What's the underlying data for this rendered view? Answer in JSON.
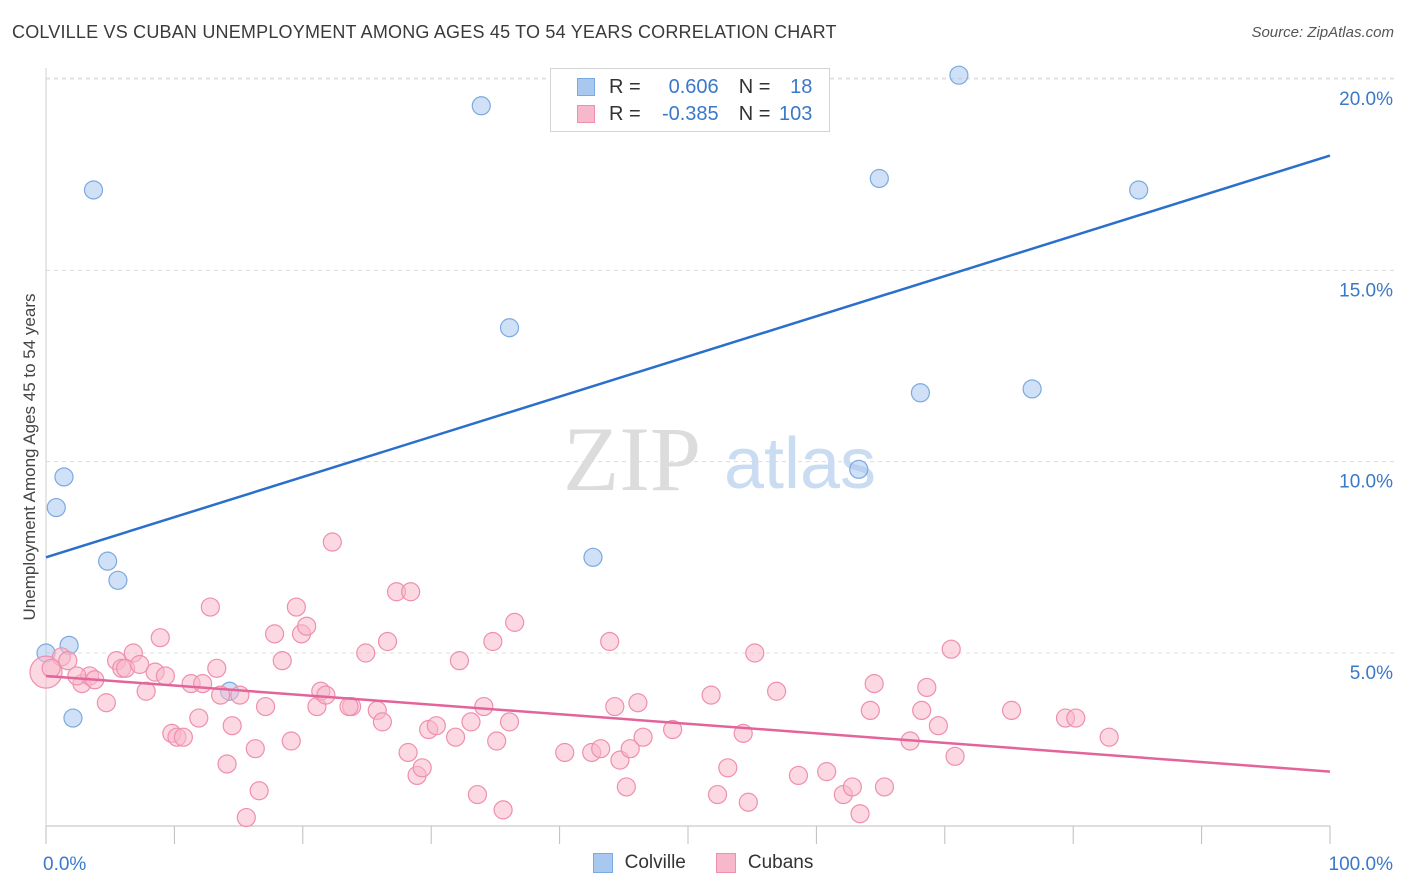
{
  "header": {
    "title": "COLVILLE VS CUBAN UNEMPLOYMENT AMONG AGES 45 TO 54 YEARS CORRELATION CHART",
    "source": "Source: ZipAtlas.com"
  },
  "watermark": {
    "zip": "ZIP",
    "atlas": "atlas"
  },
  "legend": {
    "rows": [
      {
        "r_label": "R =",
        "r_value": "0.606",
        "n_label": "N =",
        "n_value": "18",
        "color": "#a9c8f0",
        "border": "#7aaae0"
      },
      {
        "r_label": "R =",
        "r_value": "-0.385",
        "n_label": "N =",
        "n_value": "103",
        "color": "#f7b8cb",
        "border": "#ef8fae"
      }
    ]
  },
  "bottom_legend": [
    {
      "label": "Colville",
      "color": "#a9c8f0",
      "border": "#7aaae0"
    },
    {
      "label": "Cubans",
      "color": "#f7b8cb",
      "border": "#ef8fae"
    }
  ],
  "chart_data": {
    "type": "scatter",
    "title": "COLVILLE VS CUBAN UNEMPLOYMENT AMONG AGES 45 TO 54 YEARS CORRELATION CHART",
    "xlabel": "",
    "ylabel": "Unemployment Among Ages 45 to 54 years",
    "xlim": [
      0,
      100
    ],
    "ylim": [
      0,
      20.5
    ],
    "x_tick_labels": [
      "0.0%",
      "100.0%"
    ],
    "y_ticks": [
      5,
      10,
      15,
      20
    ],
    "y_tick_labels": [
      "5.0%",
      "10.0%",
      "15.0%",
      "20.0%"
    ],
    "grid": true,
    "legend_placement": "top-center",
    "series": [
      {
        "name": "Colville",
        "color": "#a9c8f0",
        "stroke": "#7aaae0",
        "line_color": "#2b6fcc",
        "trend": {
          "x": [
            0,
            100
          ],
          "y": [
            7.5,
            18.0
          ]
        },
        "points": [
          {
            "x": 0,
            "y": 5.0
          },
          {
            "x": 0.8,
            "y": 8.8
          },
          {
            "x": 1.4,
            "y": 9.6
          },
          {
            "x": 1.8,
            "y": 5.2
          },
          {
            "x": 2.1,
            "y": 3.3
          },
          {
            "x": 3.7,
            "y": 17.1
          },
          {
            "x": 4.8,
            "y": 7.4
          },
          {
            "x": 5.6,
            "y": 6.9
          },
          {
            "x": 14.3,
            "y": 4.0
          },
          {
            "x": 33.9,
            "y": 19.3
          },
          {
            "x": 36.1,
            "y": 13.5
          },
          {
            "x": 42.6,
            "y": 7.5
          },
          {
            "x": 63.3,
            "y": 9.8
          },
          {
            "x": 64.9,
            "y": 17.4
          },
          {
            "x": 68.1,
            "y": 11.8
          },
          {
            "x": 71.1,
            "y": 20.1
          },
          {
            "x": 76.8,
            "y": 11.9
          },
          {
            "x": 85.1,
            "y": 17.1
          }
        ]
      },
      {
        "name": "Cubans",
        "color": "#f7b8cb",
        "stroke": "#ef8fae",
        "line_color": "#e3649a",
        "trend": {
          "x": [
            0,
            100
          ],
          "y": [
            4.4,
            1.9
          ]
        },
        "points": [
          {
            "x": 0,
            "y": 4.5
          },
          {
            "x": 1.2,
            "y": 4.9
          },
          {
            "x": 1.7,
            "y": 4.8
          },
          {
            "x": 2.8,
            "y": 4.2
          },
          {
            "x": 3.4,
            "y": 4.4
          },
          {
            "x": 3.8,
            "y": 4.3
          },
          {
            "x": 4.7,
            "y": 3.7
          },
          {
            "x": 5.5,
            "y": 4.8
          },
          {
            "x": 5.9,
            "y": 4.6
          },
          {
            "x": 6.2,
            "y": 4.6
          },
          {
            "x": 6.8,
            "y": 5.0
          },
          {
            "x": 7.3,
            "y": 4.7
          },
          {
            "x": 7.8,
            "y": 4.0
          },
          {
            "x": 8.5,
            "y": 4.5
          },
          {
            "x": 8.9,
            "y": 5.4
          },
          {
            "x": 9.3,
            "y": 4.4
          },
          {
            "x": 9.8,
            "y": 2.9
          },
          {
            "x": 10.2,
            "y": 2.8
          },
          {
            "x": 10.7,
            "y": 2.8
          },
          {
            "x": 11.3,
            "y": 4.2
          },
          {
            "x": 11.9,
            "y": 3.3
          },
          {
            "x": 12.2,
            "y": 4.2
          },
          {
            "x": 12.8,
            "y": 6.2
          },
          {
            "x": 13.3,
            "y": 4.6
          },
          {
            "x": 13.6,
            "y": 3.9
          },
          {
            "x": 14.1,
            "y": 2.1
          },
          {
            "x": 14.5,
            "y": 3.1
          },
          {
            "x": 15.1,
            "y": 3.9
          },
          {
            "x": 15.6,
            "y": 0.7
          },
          {
            "x": 16.3,
            "y": 2.5
          },
          {
            "x": 16.6,
            "y": 1.4
          },
          {
            "x": 17.1,
            "y": 3.6
          },
          {
            "x": 17.8,
            "y": 5.5
          },
          {
            "x": 18.4,
            "y": 4.8
          },
          {
            "x": 19.1,
            "y": 2.7
          },
          {
            "x": 19.5,
            "y": 6.2
          },
          {
            "x": 19.9,
            "y": 5.5
          },
          {
            "x": 20.3,
            "y": 5.7
          },
          {
            "x": 21.1,
            "y": 3.6
          },
          {
            "x": 21.4,
            "y": 4.0
          },
          {
            "x": 21.8,
            "y": 3.9
          },
          {
            "x": 22.3,
            "y": 7.9
          },
          {
            "x": 23.8,
            "y": 3.6
          },
          {
            "x": 24.9,
            "y": 5.0
          },
          {
            "x": 25.8,
            "y": 3.5
          },
          {
            "x": 26.2,
            "y": 3.2
          },
          {
            "x": 26.6,
            "y": 5.3
          },
          {
            "x": 27.3,
            "y": 6.6
          },
          {
            "x": 28.2,
            "y": 2.4
          },
          {
            "x": 28.4,
            "y": 6.6
          },
          {
            "x": 28.9,
            "y": 1.8
          },
          {
            "x": 29.3,
            "y": 2.0
          },
          {
            "x": 29.8,
            "y": 3.0
          },
          {
            "x": 30.4,
            "y": 3.1
          },
          {
            "x": 31.9,
            "y": 2.8
          },
          {
            "x": 32.2,
            "y": 4.8
          },
          {
            "x": 33.1,
            "y": 3.2
          },
          {
            "x": 33.6,
            "y": 1.3
          },
          {
            "x": 34.1,
            "y": 3.6
          },
          {
            "x": 34.8,
            "y": 5.3
          },
          {
            "x": 35.1,
            "y": 2.7
          },
          {
            "x": 35.6,
            "y": 0.9
          },
          {
            "x": 36.1,
            "y": 3.2
          },
          {
            "x": 36.5,
            "y": 5.8
          },
          {
            "x": 40.4,
            "y": 2.4
          },
          {
            "x": 42.5,
            "y": 2.4
          },
          {
            "x": 43.2,
            "y": 2.5
          },
          {
            "x": 43.9,
            "y": 5.3
          },
          {
            "x": 44.3,
            "y": 3.6
          },
          {
            "x": 44.7,
            "y": 2.2
          },
          {
            "x": 45.2,
            "y": 1.5
          },
          {
            "x": 45.5,
            "y": 2.5
          },
          {
            "x": 46.1,
            "y": 3.7
          },
          {
            "x": 46.5,
            "y": 2.8
          },
          {
            "x": 48.8,
            "y": 3.0
          },
          {
            "x": 51.8,
            "y": 3.9
          },
          {
            "x": 52.3,
            "y": 1.3
          },
          {
            "x": 53.1,
            "y": 2.0
          },
          {
            "x": 54.3,
            "y": 2.9
          },
          {
            "x": 54.7,
            "y": 1.1
          },
          {
            "x": 55.2,
            "y": 5.0
          },
          {
            "x": 56.9,
            "y": 4.0
          },
          {
            "x": 58.6,
            "y": 1.8
          },
          {
            "x": 60.8,
            "y": 1.9
          },
          {
            "x": 62.1,
            "y": 1.3
          },
          {
            "x": 62.8,
            "y": 1.5
          },
          {
            "x": 63.4,
            "y": 0.8
          },
          {
            "x": 64.2,
            "y": 3.5
          },
          {
            "x": 64.5,
            "y": 4.2
          },
          {
            "x": 65.3,
            "y": 1.5
          },
          {
            "x": 67.3,
            "y": 2.7
          },
          {
            "x": 68.2,
            "y": 3.5
          },
          {
            "x": 68.6,
            "y": 4.1
          },
          {
            "x": 69.5,
            "y": 3.1
          },
          {
            "x": 70.5,
            "y": 5.1
          },
          {
            "x": 70.8,
            "y": 2.3
          },
          {
            "x": 75.2,
            "y": 3.5
          },
          {
            "x": 79.4,
            "y": 3.3
          },
          {
            "x": 80.2,
            "y": 3.3
          },
          {
            "x": 82.8,
            "y": 2.8
          },
          {
            "x": 0.4,
            "y": 4.6
          },
          {
            "x": 2.4,
            "y": 4.4
          },
          {
            "x": 23.6,
            "y": 3.6
          }
        ]
      }
    ]
  }
}
